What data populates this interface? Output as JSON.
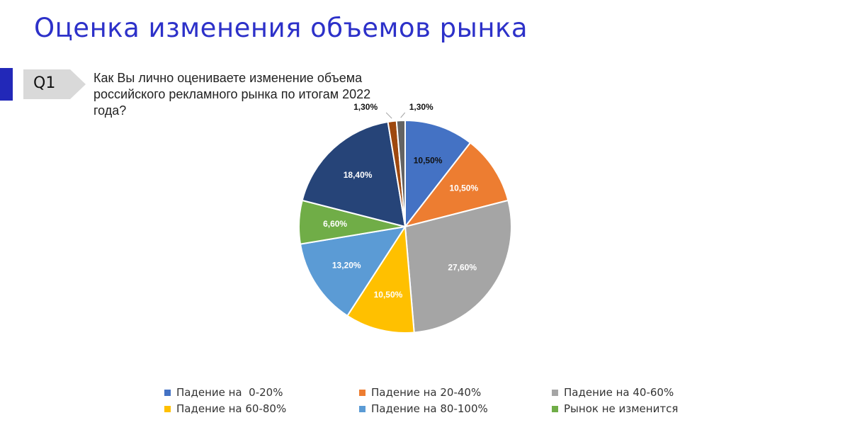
{
  "header": {
    "title": "Оценка изменения объемов рынка",
    "question_tag": "Q1",
    "question": "Как Вы лично оцениваете изменение объема российского рекламного рынка по итогам 2022 года?"
  },
  "chart_data": {
    "type": "pie",
    "title": "",
    "start_angle_deg": 0,
    "direction": "clockwise",
    "legend_position": "bottom",
    "slices": [
      {
        "label": "Падение на  0-20%",
        "value": 10.5,
        "display": "10,50%",
        "color": "#4472c4",
        "label_color": "#111111",
        "in_legend": true
      },
      {
        "label": "Падение на 20-40%",
        "value": 10.5,
        "display": "10,50%",
        "color": "#ed7d31",
        "label_color": "#ffffff",
        "in_legend": true
      },
      {
        "label": "Падение на 40-60%",
        "value": 27.6,
        "display": "27,60%",
        "color": "#a5a5a5",
        "label_color": "#ffffff",
        "in_legend": true
      },
      {
        "label": "Падение на 60-80%",
        "value": 10.5,
        "display": "10,50%",
        "color": "#ffc000",
        "label_color": "#ffffff",
        "in_legend": true
      },
      {
        "label": "Падение на 80-100%",
        "value": 13.2,
        "display": "13,20%",
        "color": "#5b9bd5",
        "label_color": "#ffffff",
        "in_legend": true
      },
      {
        "label": "Рынок не изменится",
        "value": 6.6,
        "display": "6,60%",
        "color": "#70ad47",
        "label_color": "#ffffff",
        "in_legend": true
      },
      {
        "label": "",
        "value": 18.4,
        "display": "18,40%",
        "color": "#264478",
        "label_color": "#ffffff",
        "in_legend": false
      },
      {
        "label": "",
        "value": 1.3,
        "display": "1,30%",
        "color": "#9e480e",
        "label_color": "#111111",
        "in_legend": false,
        "outside": true
      },
      {
        "label": "",
        "value": 1.3,
        "display": "1,30%",
        "color": "#636363",
        "label_color": "#111111",
        "in_legend": false,
        "outside": true
      }
    ]
  }
}
